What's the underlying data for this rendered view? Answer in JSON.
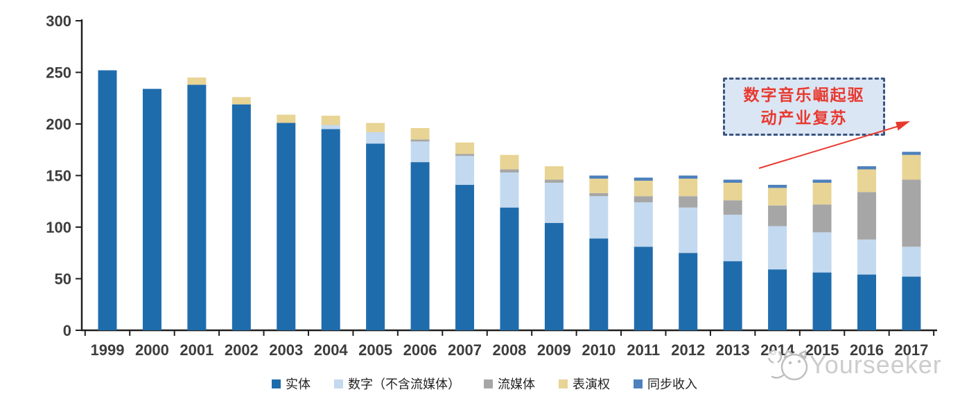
{
  "chart_data": {
    "type": "bar",
    "stacked": true,
    "title": "",
    "xlabel": "",
    "ylabel": "",
    "ylim": [
      0,
      300
    ],
    "yticks": [
      0,
      50,
      100,
      150,
      200,
      250,
      300
    ],
    "grid": false,
    "legend_position": "bottom",
    "categories": [
      "1999",
      "2000",
      "2001",
      "2002",
      "2003",
      "2004",
      "2005",
      "2006",
      "2007",
      "2008",
      "2009",
      "2010",
      "2011",
      "2012",
      "2013",
      "2014",
      "2015",
      "2016",
      "2017"
    ],
    "series": [
      {
        "name": "实体",
        "color": "#1f6cad",
        "values": [
          252,
          234,
          238,
          219,
          201,
          195,
          181,
          163,
          141,
          119,
          104,
          89,
          81,
          75,
          67,
          59,
          56,
          54,
          52
        ]
      },
      {
        "name": "数字（不含流媒体）",
        "color": "#c3d9ef",
        "values": [
          0,
          0,
          0,
          0,
          0,
          4,
          11,
          20,
          28,
          34,
          39,
          41,
          43,
          44,
          45,
          42,
          39,
          34,
          29
        ]
      },
      {
        "name": "流媒体",
        "color": "#a6a6a6",
        "values": [
          0,
          0,
          0,
          0,
          0,
          0,
          0,
          2,
          2,
          3,
          3,
          3,
          6,
          11,
          14,
          20,
          27,
          46,
          65
        ]
      },
      {
        "name": "表演权",
        "color": "#e8d494",
        "values": [
          0,
          0,
          7,
          7,
          8,
          9,
          9,
          11,
          11,
          14,
          13,
          14,
          15,
          17,
          17,
          17,
          21,
          22,
          24
        ]
      },
      {
        "name": "同步收入",
        "color": "#4d80bc",
        "values": [
          0,
          0,
          0,
          0,
          0,
          0,
          0,
          0,
          0,
          0,
          0,
          3,
          3,
          3,
          3,
          3,
          3,
          3,
          3
        ]
      }
    ]
  },
  "annotation": {
    "line1": "数字音乐崛起驱",
    "line2": "动产业复苏",
    "text_color": "#e8392f",
    "border_color": "#3c5480",
    "fill_color": "#dbe6f4",
    "arrow_color": "#e8392f"
  },
  "watermark": {
    "text": "Yourseeker"
  },
  "axis": {
    "line_color": "#1f1f1f",
    "label_color": "#3d3d3d"
  }
}
